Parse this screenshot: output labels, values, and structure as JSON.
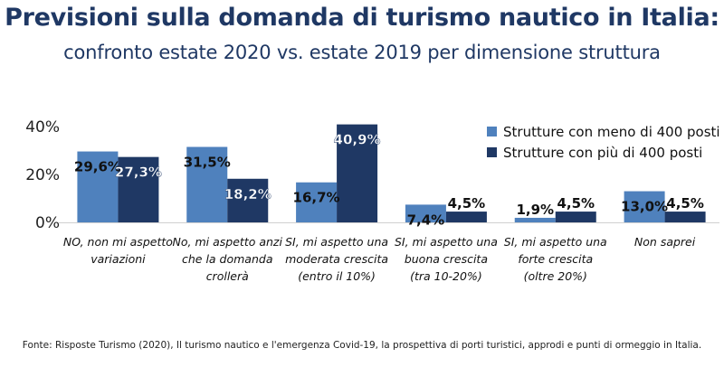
{
  "title": "Previsioni sulla domanda di turismo nautico in Italia:",
  "subtitle": "confronto estate 2020 vs. estate 2019 per dimensione struttura",
  "source": "Fonte: Risposte Turismo (2020), Il turismo nautico e l'emergenza Covid-19, la prospettiva di porti turistici, approdi e punti di ormeggio in Italia.",
  "colors": {
    "series1": "#4f81bd",
    "series2": "#1f3864",
    "title": "#1f3864"
  },
  "chart_data": {
    "type": "bar",
    "title": "Previsioni sulla domanda di turismo nautico in Italia:",
    "subtitle": "confronto estate 2020 vs. estate 2019 per dimensione struttura",
    "categories": [
      [
        "NO, non mi aspetto",
        "variazioni"
      ],
      [
        "No, mi aspetto anzi",
        "che la domanda",
        "crollerà"
      ],
      [
        "SI, mi aspetto una",
        "moderata crescita",
        "(entro il 10%)"
      ],
      [
        "SI, mi aspetto una",
        "buona crescita",
        "(tra 10-20%)"
      ],
      [
        "SI, mi aspetto una",
        "forte crescita",
        "(oltre 20%)"
      ],
      [
        "Non saprei"
      ]
    ],
    "series": [
      {
        "name": "Strutture con meno di 400 posti",
        "values": [
          29.6,
          31.5,
          16.7,
          7.4,
          1.9,
          13.0
        ],
        "labels": [
          "29,6%",
          "31,5%",
          "16,7%",
          "7,4%",
          "1,9%",
          "13,0%"
        ]
      },
      {
        "name": "Strutture con più di 400 posti",
        "values": [
          27.3,
          18.2,
          40.9,
          4.5,
          4.5,
          4.5
        ],
        "labels": [
          "27,3%",
          "18,2%",
          "40,9%",
          "4,5%",
          "4,5%",
          "4,5%"
        ]
      }
    ],
    "yticks": [
      0,
      20,
      40
    ],
    "yticklabels": [
      "0%",
      "20%",
      "40%"
    ],
    "ylim": [
      0,
      40.9
    ],
    "legend": "top-right",
    "grid": false
  }
}
